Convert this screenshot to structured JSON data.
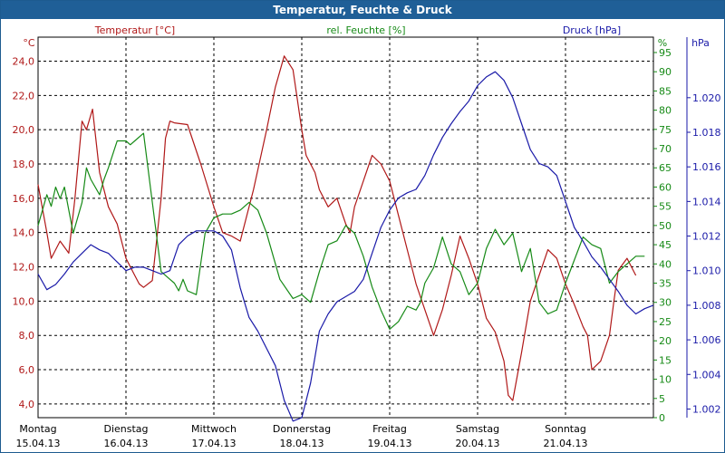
{
  "window": {
    "title": "Temperatur, Feuchte & Druck"
  },
  "colors": {
    "temperature": "#b01818",
    "humidity": "#168a16",
    "pressure": "#1a1aa8",
    "grid": "#000000",
    "title_bar": "#1f5f97"
  },
  "chart_data": {
    "type": "line",
    "title": "Temperatur, Feuchte & Druck",
    "x_domain": [
      0,
      7
    ],
    "x_ticks": [
      {
        "x": 0,
        "day": "Montag",
        "date": "15.04.13"
      },
      {
        "x": 1,
        "day": "Dienstag",
        "date": "16.04.13"
      },
      {
        "x": 2,
        "day": "Mittwoch",
        "date": "17.04.13"
      },
      {
        "x": 3,
        "day": "Donnerstag",
        "date": "18.04.13"
      },
      {
        "x": 4,
        "day": "Freitag",
        "date": "19.04.13"
      },
      {
        "x": 5,
        "day": "Samstag",
        "date": "20.04.13"
      },
      {
        "x": 6,
        "day": "Sonntag",
        "date": "21.04.13"
      }
    ],
    "axes": {
      "temperature": {
        "label": "Temperatur [°C]",
        "unit": "°C",
        "range": [
          3.2,
          25.4
        ],
        "ticks": [
          "4,0",
          "6,0",
          "8,0",
          "10,0",
          "12,0",
          "14,0",
          "16,0",
          "18,0",
          "20,0",
          "22,0",
          "24,0"
        ],
        "tick_values": [
          4,
          6,
          8,
          10,
          12,
          14,
          16,
          18,
          20,
          22,
          24
        ]
      },
      "humidity": {
        "label": "rel. Feuchte [%]",
        "unit": "%",
        "range": [
          0,
          99
        ],
        "ticks": [
          "0",
          "5",
          "10",
          "15",
          "20",
          "25",
          "30",
          "35",
          "40",
          "45",
          "50",
          "55",
          "60",
          "65",
          "70",
          "75",
          "80",
          "85",
          "90",
          "95"
        ],
        "tick_values": [
          0,
          5,
          10,
          15,
          20,
          25,
          30,
          35,
          40,
          45,
          50,
          55,
          60,
          65,
          70,
          75,
          80,
          85,
          90,
          95
        ]
      },
      "pressure": {
        "label": "Druck [hPa]",
        "unit": "hPa",
        "range": [
          1.0015,
          1.0235
        ],
        "ticks": [
          "1.002",
          "1.004",
          "1.006",
          "1.008",
          "1.010",
          "1.012",
          "1.014",
          "1.016",
          "1.018",
          "1.020"
        ],
        "tick_values": [
          1.002,
          1.004,
          1.006,
          1.008,
          1.01,
          1.012,
          1.014,
          1.016,
          1.018,
          1.02
        ]
      }
    },
    "series": [
      {
        "name": "Temperatur",
        "axis": "temperature",
        "x": [
          0,
          0.1,
          0.15,
          0.25,
          0.35,
          0.42,
          0.5,
          0.55,
          0.62,
          0.7,
          0.8,
          0.9,
          1.0,
          1.1,
          1.15,
          1.2,
          1.3,
          1.4,
          1.45,
          1.5,
          1.55,
          1.7,
          1.85,
          2.0,
          2.1,
          2.2,
          2.3,
          2.45,
          2.6,
          2.7,
          2.8,
          2.9,
          3.0,
          3.05,
          3.1,
          3.15,
          3.2,
          3.3,
          3.4,
          3.5,
          3.55,
          3.6,
          3.7,
          3.8,
          3.9,
          4.0,
          4.1,
          4.2,
          4.3,
          4.4,
          4.5,
          4.6,
          4.7,
          4.8,
          4.9,
          5.0,
          5.1,
          5.2,
          5.3,
          5.35,
          5.4,
          5.5,
          5.6,
          5.7,
          5.8,
          5.9,
          6.0,
          6.1,
          6.2,
          6.25,
          6.3,
          6.4,
          6.5,
          6.55,
          6.6,
          6.7,
          6.8
        ],
        "values": [
          16.8,
          14.0,
          12.5,
          13.5,
          12.8,
          16.0,
          20.5,
          20.0,
          21.2,
          17.5,
          15.5,
          14.5,
          12.5,
          11.5,
          11.0,
          10.8,
          11.2,
          16.0,
          19.5,
          20.5,
          20.4,
          20.3,
          18.0,
          15.5,
          14.0,
          13.8,
          13.5,
          16.5,
          20.0,
          22.5,
          24.3,
          23.5,
          20.0,
          18.5,
          18.0,
          17.5,
          16.5,
          15.5,
          16.0,
          14.5,
          14.0,
          15.5,
          17.0,
          18.5,
          18.0,
          17.0,
          15.0,
          13.0,
          11.0,
          9.5,
          8.0,
          9.5,
          11.5,
          13.8,
          12.5,
          11.0,
          9.0,
          8.2,
          6.5,
          4.5,
          4.2,
          7.0,
          10.0,
          11.5,
          13.0,
          12.5,
          11.0,
          9.8,
          8.5,
          8.0,
          6.0,
          6.5,
          8.0,
          10.0,
          11.8,
          12.5,
          11.5
        ]
      },
      {
        "name": "rel. Feuchte",
        "axis": "humidity",
        "x": [
          0,
          0.1,
          0.15,
          0.2,
          0.25,
          0.3,
          0.35,
          0.4,
          0.5,
          0.55,
          0.6,
          0.7,
          0.75,
          0.8,
          0.9,
          1.0,
          1.05,
          1.1,
          1.2,
          1.3,
          1.4,
          1.5,
          1.55,
          1.6,
          1.65,
          1.7,
          1.8,
          1.9,
          2.0,
          2.1,
          2.2,
          2.3,
          2.4,
          2.5,
          2.6,
          2.75,
          2.9,
          3.0,
          3.1,
          3.2,
          3.3,
          3.4,
          3.5,
          3.6,
          3.7,
          3.8,
          3.9,
          4.0,
          4.1,
          4.2,
          4.3,
          4.35,
          4.4,
          4.5,
          4.6,
          4.7,
          4.8,
          4.9,
          5.0,
          5.1,
          5.2,
          5.3,
          5.4,
          5.5,
          5.6,
          5.7,
          5.8,
          5.9,
          6.0,
          6.1,
          6.2,
          6.3,
          6.4,
          6.5,
          6.6,
          6.7,
          6.8,
          6.9
        ],
        "values": [
          50,
          58,
          55,
          60,
          57,
          60,
          54,
          48,
          56,
          65,
          62,
          58,
          62,
          65,
          72,
          72,
          71,
          72,
          74,
          56,
          38,
          36,
          35,
          33,
          36,
          33,
          32,
          48,
          52,
          53,
          53,
          54,
          56,
          54,
          48,
          36,
          31,
          32,
          30,
          38,
          45,
          46,
          50,
          48,
          42,
          34,
          28,
          23,
          25,
          29,
          28,
          30,
          35,
          39,
          47,
          40,
          38,
          32,
          35,
          44,
          49,
          45,
          48,
          38,
          44,
          30,
          27,
          28,
          35,
          41,
          47,
          45,
          44,
          35,
          38,
          40,
          42,
          42
        ]
      },
      {
        "name": "Druck",
        "axis": "pressure",
        "x": [
          0,
          0.1,
          0.2,
          0.3,
          0.4,
          0.5,
          0.6,
          0.7,
          0.8,
          0.9,
          1.0,
          1.1,
          1.2,
          1.3,
          1.4,
          1.5,
          1.6,
          1.7,
          1.8,
          1.9,
          2.0,
          2.1,
          2.2,
          2.3,
          2.4,
          2.5,
          2.6,
          2.7,
          2.8,
          2.9,
          3.0,
          3.1,
          3.2,
          3.3,
          3.4,
          3.5,
          3.6,
          3.7,
          3.8,
          3.9,
          4.0,
          4.1,
          4.2,
          4.3,
          4.4,
          4.5,
          4.6,
          4.7,
          4.8,
          4.9,
          5.0,
          5.1,
          5.2,
          5.3,
          5.4,
          5.5,
          5.6,
          5.7,
          5.8,
          5.9,
          6.0,
          6.1,
          6.2,
          6.3,
          6.4,
          6.5,
          6.6,
          6.7,
          6.8,
          6.9,
          7.0
        ],
        "values": [
          1.0098,
          1.0089,
          1.0092,
          1.0098,
          1.0105,
          1.011,
          1.0115,
          1.0112,
          1.011,
          1.0105,
          1.01,
          1.0102,
          1.0102,
          1.01,
          1.0098,
          1.01,
          1.0115,
          1.012,
          1.0123,
          1.0123,
          1.0123,
          1.012,
          1.0112,
          1.009,
          1.0073,
          1.0065,
          1.0055,
          1.0045,
          1.0025,
          1.0013,
          1.0015,
          1.0035,
          1.0065,
          1.0075,
          1.0082,
          1.0085,
          1.0088,
          1.0095,
          1.011,
          1.0125,
          1.0135,
          1.0142,
          1.0145,
          1.0147,
          1.0155,
          1.0167,
          1.0177,
          1.0185,
          1.0192,
          1.0198,
          1.0207,
          1.0212,
          1.0215,
          1.021,
          1.02,
          1.0185,
          1.017,
          1.0162,
          1.016,
          1.0155,
          1.014,
          1.0125,
          1.0117,
          1.0108,
          1.0102,
          1.0095,
          1.0088,
          1.008,
          1.0075,
          1.0078,
          1.008
        ]
      }
    ]
  }
}
